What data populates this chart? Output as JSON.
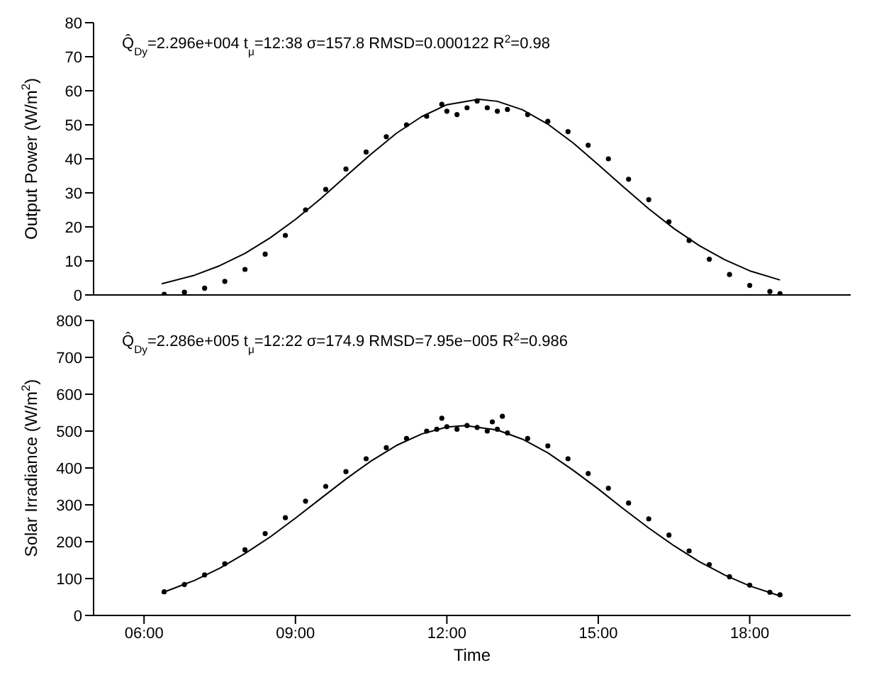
{
  "chart_data": [
    {
      "type": "scatter",
      "ylabel": "Output Power (W/m$^{2}$)",
      "annotations": [
        "Q̂$_{Dy}$=2.296e+004 t$_{μ}$=12:38 σ=157.8 RMSD=0.000122 R$^{2}$=0.98"
      ],
      "xlim": [
        5,
        20
      ],
      "xticks": [
        {
          "value": 6,
          "label": null
        },
        {
          "value": 9,
          "label": null
        },
        {
          "value": 12,
          "label": null
        },
        {
          "value": 15,
          "label": null
        },
        {
          "value": 18,
          "label": null
        }
      ],
      "ylim": [
        0,
        80
      ],
      "yticks": [
        0,
        10,
        20,
        30,
        40,
        50,
        60,
        70,
        80
      ],
      "grid": false,
      "legend": false,
      "tick_labels": "y",
      "series": [
        {
          "type": "scatter",
          "color": "#000000",
          "marker": "circle",
          "x": [
            6.4,
            6.8,
            7.2,
            7.6,
            8.0,
            8.4,
            8.8,
            9.2,
            9.6,
            10.0,
            10.4,
            10.8,
            11.2,
            11.6,
            11.9,
            12.0,
            12.2,
            12.4,
            12.6,
            12.8,
            13.0,
            13.2,
            13.6,
            14.0,
            14.4,
            14.8,
            15.2,
            15.6,
            16.0,
            16.4,
            16.8,
            17.2,
            17.6,
            18.0,
            18.4,
            18.6
          ],
          "values": [
            0.2,
            0.8,
            2,
            4,
            7.5,
            12,
            17.5,
            25,
            31,
            37,
            42,
            46.5,
            50,
            52.5,
            56,
            54,
            53,
            55,
            57,
            55,
            54,
            54.5,
            53,
            51,
            48,
            44,
            40,
            34,
            28,
            21.5,
            16,
            10.5,
            6,
            2.8,
            1,
            0.4
          ]
        },
        {
          "type": "line",
          "color": "#000000",
          "marker": "none",
          "line_style": "solid",
          "x": [
            6.35,
            7,
            7.5,
            8,
            8.5,
            9,
            9.5,
            10,
            10.5,
            11,
            11.5,
            12,
            12.63,
            13,
            13.5,
            14,
            14.5,
            15,
            15.5,
            16,
            16.5,
            17,
            17.5,
            18,
            18.6
          ],
          "values": [
            3.3,
            5.8,
            8.6,
            12.2,
            16.8,
            22.2,
            28.3,
            34.9,
            41.4,
            47.5,
            52.4,
            55.9,
            57.5,
            56.9,
            54.4,
            50.2,
            44.7,
            38.3,
            31.7,
            25.3,
            19.5,
            14.5,
            10.4,
            7.1,
            4.4
          ]
        }
      ]
    },
    {
      "type": "scatter",
      "xlabel": "Time",
      "ylabel": "Solar Irradiance (W/m$^{2}$)",
      "annotations": [
        "Q̂$_{Dy}$=2.286e+005 t$_{μ}$=12:22 σ=174.9 RMSD=7.95e−005 R$^{2}$=0.986"
      ],
      "xlim": [
        5,
        20
      ],
      "xticks": [
        {
          "value": 6,
          "label": "06:00"
        },
        {
          "value": 9,
          "label": "09:00"
        },
        {
          "value": 12,
          "label": "12:00"
        },
        {
          "value": 15,
          "label": "15:00"
        },
        {
          "value": 18,
          "label": "18:00"
        }
      ],
      "ylim": [
        0,
        800
      ],
      "yticks": [
        0,
        100,
        200,
        300,
        400,
        500,
        600,
        700,
        800
      ],
      "grid": false,
      "legend": false,
      "series": [
        {
          "type": "scatter",
          "color": "#000000",
          "marker": "circle",
          "x": [
            6.4,
            6.8,
            7.2,
            7.6,
            8.0,
            8.4,
            8.8,
            9.2,
            9.6,
            10.0,
            10.4,
            10.8,
            11.2,
            11.6,
            11.8,
            11.9,
            12.0,
            12.2,
            12.4,
            12.6,
            12.8,
            12.9,
            13.0,
            13.1,
            13.2,
            13.6,
            14.0,
            14.4,
            14.8,
            15.2,
            15.6,
            16.0,
            16.4,
            16.8,
            17.2,
            17.6,
            18.0,
            18.4,
            18.6
          ],
          "values": [
            64,
            84,
            110,
            140,
            178,
            222,
            265,
            310,
            350,
            390,
            425,
            455,
            480,
            500,
            505,
            535,
            512,
            505,
            515,
            510,
            500,
            525,
            505,
            540,
            495,
            480,
            460,
            425,
            385,
            345,
            305,
            262,
            218,
            175,
            138,
            105,
            82,
            63,
            56
          ]
        },
        {
          "type": "line",
          "color": "#000000",
          "marker": "none",
          "line_style": "solid",
          "x": [
            6.35,
            7,
            7.5,
            8,
            8.5,
            9,
            9.5,
            10,
            10.5,
            11,
            11.5,
            12,
            12.37,
            13,
            13.5,
            14,
            14.5,
            15,
            15.5,
            16,
            16.5,
            17,
            17.5,
            18,
            18.6
          ],
          "values": [
            61,
            95,
            128,
            168,
            213,
            264,
            317,
            370,
            419,
            461,
            492,
            511,
            515,
            503,
            478,
            441,
            394,
            343,
            289,
            237,
            189,
            146,
            110,
            80,
            53
          ]
        }
      ]
    }
  ]
}
